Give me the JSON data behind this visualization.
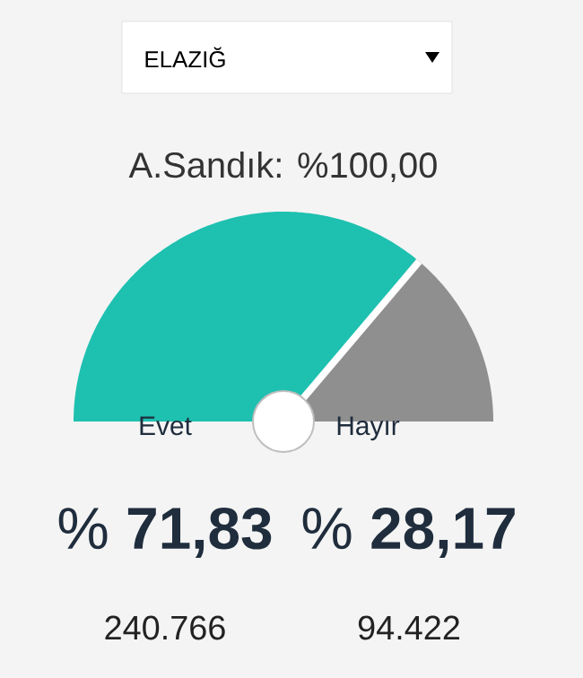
{
  "chart_data": {
    "type": "pie",
    "needle": "Hayır",
    "title": "A.Sandık: %100,00",
    "categories": [
      "Evet",
      "Hayır"
    ],
    "values": [
      71.83,
      28.17
    ],
    "colors": [
      "#1ec0b0",
      "#8f8f8f"
    ],
    "annotations": [
      "ELAZIĞ",
      "% **71,83**",
      "% **28,17**",
      "240.766",
      "94.422"
    ]
  }
}
